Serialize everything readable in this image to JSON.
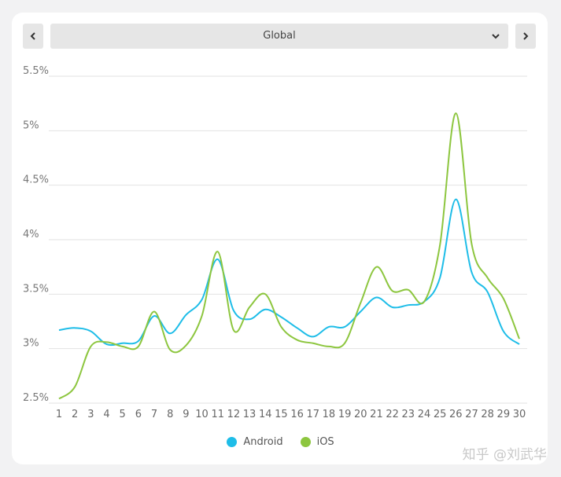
{
  "region_select": {
    "value": "Global"
  },
  "prev_label": "‹",
  "next_label": "›",
  "chart_data": {
    "type": "line",
    "x": [
      1,
      2,
      3,
      4,
      5,
      6,
      7,
      8,
      9,
      10,
      11,
      12,
      13,
      14,
      15,
      16,
      17,
      18,
      19,
      20,
      21,
      22,
      23,
      24,
      25,
      26,
      27,
      28,
      29,
      30
    ],
    "series": [
      {
        "name": "Android",
        "color": "#1ebde8",
        "values": [
          3.17,
          3.19,
          3.16,
          3.04,
          3.05,
          3.07,
          3.3,
          3.14,
          3.31,
          3.45,
          3.82,
          3.35,
          3.27,
          3.36,
          3.29,
          3.19,
          3.11,
          3.2,
          3.2,
          3.34,
          3.47,
          3.38,
          3.4,
          3.43,
          3.65,
          4.37,
          3.7,
          3.52,
          3.16,
          3.04
        ]
      },
      {
        "name": "iOS",
        "color": "#8dc63f",
        "values": [
          2.54,
          2.65,
          3.02,
          3.06,
          3.02,
          3.02,
          3.34,
          2.99,
          3.03,
          3.3,
          3.89,
          3.17,
          3.38,
          3.5,
          3.2,
          3.08,
          3.05,
          3.02,
          3.05,
          3.42,
          3.75,
          3.53,
          3.54,
          3.43,
          3.95,
          5.16,
          3.96,
          3.65,
          3.46,
          3.09
        ]
      }
    ],
    "ylim": [
      2.5,
      5.5
    ],
    "yticks": [
      2.5,
      3,
      3.5,
      4,
      4.5,
      5,
      5.5
    ],
    "ytick_labels": [
      "2.5%",
      "3%",
      "3.5%",
      "4%",
      "4.5%",
      "5%",
      "5.5%"
    ],
    "grid": true,
    "legend_position": "bottom"
  },
  "watermark": "知乎 @刘武华"
}
